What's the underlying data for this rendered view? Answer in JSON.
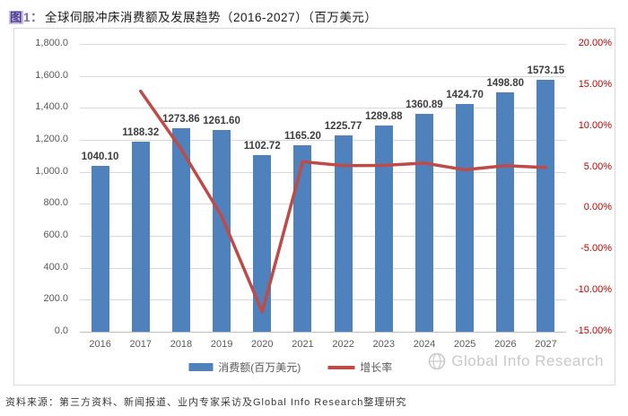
{
  "title": {
    "fig_char": "图",
    "fig_num": "1：",
    "text": "全球伺服冲床消费额及发展趋势（2016-2027）（百万美元）"
  },
  "chart_data": {
    "type": "combo",
    "title": "全球伺服冲床消费额及发展趋势（2016-2027）（百万美元）",
    "categories": [
      "2016",
      "2017",
      "2018",
      "2019",
      "2020",
      "2021",
      "2022",
      "2023",
      "2024",
      "2025",
      "2026",
      "2027"
    ],
    "series": [
      {
        "name": "消费额(百万美元)",
        "type": "bar",
        "axis": "left",
        "color": "#4F81BD",
        "values": [
          1040.1,
          1188.32,
          1273.86,
          1261.6,
          1102.72,
          1165.2,
          1225.77,
          1289.88,
          1360.89,
          1424.7,
          1498.8,
          1573.15
        ],
        "labels": [
          "1040.10",
          "1188.32",
          "1273.86",
          "1261.60",
          "1102.72",
          "1165.20",
          "1225.77",
          "1289.88",
          "1360.89",
          "1424.70",
          "1498.80",
          "1573.15"
        ]
      },
      {
        "name": "增长率",
        "type": "line",
        "axis": "right",
        "color": "#BE4B48",
        "values": [
          null,
          14.25,
          7.2,
          -0.96,
          -12.59,
          5.67,
          5.2,
          5.23,
          5.51,
          4.69,
          5.2,
          4.96
        ]
      }
    ],
    "left_axis": {
      "min": 0,
      "max": 1800,
      "step": 200,
      "tick_labels": [
        "1,800.0",
        "1,600.0",
        "1,400.0",
        "1,200.0",
        "1,000.0",
        "800.0",
        "600.0",
        "400.0",
        "200.0",
        "0.0"
      ]
    },
    "right_axis": {
      "min": -15,
      "max": 20,
      "step": 5,
      "label_color": "#C00000",
      "tick_labels": [
        "20.00%",
        "15.00%",
        "10.00%",
        "5.00%",
        "0.00%",
        "-5.00%",
        "-10.00%",
        "-15.00%"
      ]
    },
    "grid": true,
    "legend_position": "bottom"
  },
  "legend": [
    {
      "label": "消费额(百万美元)",
      "marker": "bar",
      "color": "#4F81BD"
    },
    {
      "label": "增长率",
      "marker": "line",
      "color": "#BE4B48"
    }
  ],
  "watermark": {
    "icon": "globe-icon",
    "text": "Global Info Research"
  },
  "source": "资料来源：第三方资料、新闻报道、业内专家采访及Global Info Research整理研究"
}
